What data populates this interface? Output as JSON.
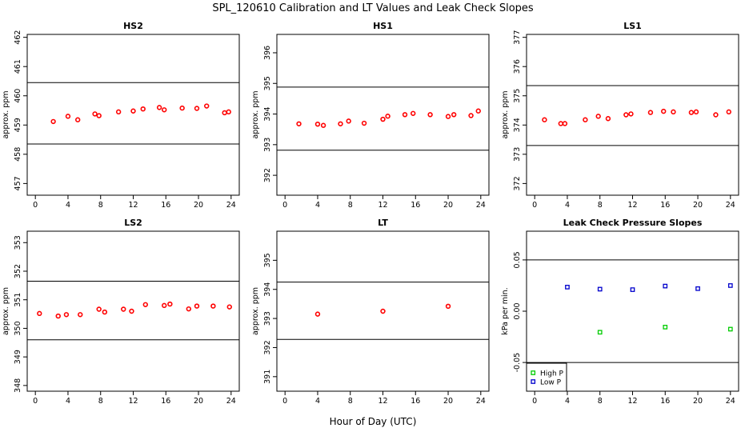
{
  "figure": {
    "title": "SPL_120610  Calibration and LT Values and Leak Check Slopes",
    "xlabel": "Hour of Day (UTC)"
  },
  "chart_data": [
    {
      "type": "scatter",
      "title": "HS2",
      "ylabel": "approx. ppm",
      "xlim": [
        -1,
        25
      ],
      "ylim": [
        456.6,
        462.1
      ],
      "xticks": [
        0,
        4,
        8,
        12,
        16,
        20,
        24
      ],
      "yticks": [
        457,
        458,
        459,
        460,
        461,
        462
      ],
      "hlines": [
        460.45,
        458.35
      ],
      "series": [
        {
          "color": "#ff0000",
          "marker": "circle",
          "x": [
            2.2,
            4,
            5.2,
            7.3,
            7.8,
            10.2,
            12,
            13.2,
            15.2,
            15.8,
            18,
            19.8,
            21,
            23.2,
            23.7
          ],
          "y": [
            459.12,
            459.3,
            459.18,
            459.38,
            459.32,
            459.45,
            459.48,
            459.55,
            459.6,
            459.52,
            459.58,
            459.57,
            459.65,
            459.42,
            459.45
          ]
        }
      ]
    },
    {
      "type": "scatter",
      "title": "HS1",
      "ylabel": "approx. ppm",
      "xlim": [
        -1,
        25
      ],
      "ylim": [
        391.35,
        396.6
      ],
      "xticks": [
        0,
        4,
        8,
        12,
        16,
        20,
        24
      ],
      "yticks": [
        392,
        393,
        394,
        395,
        396
      ],
      "hlines": [
        394.88,
        392.82
      ],
      "series": [
        {
          "color": "#ff0000",
          "marker": "circle",
          "x": [
            1.7,
            4,
            4.7,
            6.8,
            7.8,
            9.7,
            12,
            12.6,
            14.7,
            15.7,
            17.8,
            20,
            20.7,
            22.8,
            23.7
          ],
          "y": [
            393.68,
            393.67,
            393.63,
            393.68,
            393.77,
            393.7,
            393.83,
            393.93,
            393.98,
            394.02,
            393.98,
            393.92,
            393.98,
            393.95,
            394.1
          ]
        }
      ]
    },
    {
      "type": "scatter",
      "title": "LS1",
      "ylabel": "approx. ppm",
      "xlim": [
        -1,
        25
      ],
      "ylim": [
        371.6,
        377.1
      ],
      "xticks": [
        0,
        4,
        8,
        12,
        16,
        20,
        24
      ],
      "yticks": [
        372,
        373,
        374,
        375,
        376,
        377
      ],
      "hlines": [
        375.35,
        373.3
      ],
      "series": [
        {
          "color": "#ff0000",
          "marker": "circle",
          "x": [
            1.2,
            3.2,
            3.7,
            6.2,
            7.8,
            9,
            11.2,
            11.8,
            14.2,
            15.8,
            17,
            19.2,
            19.8,
            22.2,
            23.8
          ],
          "y": [
            374.18,
            374.05,
            374.05,
            374.18,
            374.3,
            374.22,
            374.35,
            374.38,
            374.43,
            374.47,
            374.45,
            374.43,
            374.45,
            374.35,
            374.45
          ]
        }
      ]
    },
    {
      "type": "scatter",
      "title": "LS2",
      "ylabel": "approx. ppm",
      "xlim": [
        -1,
        25
      ],
      "ylim": [
        347.8,
        353.4
      ],
      "xticks": [
        0,
        4,
        8,
        12,
        16,
        20,
        24
      ],
      "yticks": [
        348,
        349,
        350,
        351,
        352,
        353
      ],
      "hlines": [
        351.65,
        349.6
      ],
      "series": [
        {
          "color": "#ff0000",
          "marker": "circle",
          "x": [
            0.5,
            2.8,
            3.8,
            5.5,
            7.8,
            8.5,
            10.8,
            11.8,
            13.5,
            15.8,
            16.5,
            18.8,
            19.8,
            21.8,
            23.8
          ],
          "y": [
            350.52,
            350.43,
            350.48,
            350.48,
            350.67,
            350.57,
            350.67,
            350.6,
            350.83,
            350.8,
            350.85,
            350.68,
            350.78,
            350.78,
            350.75
          ]
        }
      ]
    },
    {
      "type": "scatter",
      "title": "LT",
      "ylabel": "approx. ppm",
      "xlim": [
        -1,
        25
      ],
      "ylim": [
        390.5,
        396.0
      ],
      "xticks": [
        0,
        4,
        8,
        12,
        16,
        20,
        24
      ],
      "yticks": [
        391,
        392,
        393,
        394,
        395
      ],
      "hlines": [
        394.25,
        392.28
      ],
      "series": [
        {
          "color": "#ff0000",
          "marker": "circle",
          "x": [
            4,
            12,
            20
          ],
          "y": [
            393.15,
            393.25,
            393.42
          ]
        }
      ]
    },
    {
      "type": "scatter",
      "title": "Leak Check Pressure Slopes",
      "ylabel": "kPa per min.",
      "xlim": [
        -1,
        25
      ],
      "ylim": [
        -0.078,
        0.078
      ],
      "xticks": [
        0,
        4,
        8,
        12,
        16,
        20,
        24
      ],
      "yticks": [
        -0.05,
        0.0,
        0.05
      ],
      "ytick_labels": [
        "-0.05",
        "0.00",
        "0.05"
      ],
      "hlines": [
        0.05,
        -0.05
      ],
      "legend": "bottom-left",
      "series": [
        {
          "name": "High P",
          "color": "#00cc00",
          "marker": "square",
          "x": [
            8,
            16,
            24
          ],
          "y": [
            -0.0205,
            -0.0155,
            -0.0175
          ]
        },
        {
          "name": "Low P",
          "color": "#0000cc",
          "marker": "square",
          "x": [
            4,
            8,
            12,
            16,
            20,
            24
          ],
          "y": [
            0.0235,
            0.0215,
            0.021,
            0.0245,
            0.022,
            0.025
          ]
        }
      ]
    }
  ]
}
